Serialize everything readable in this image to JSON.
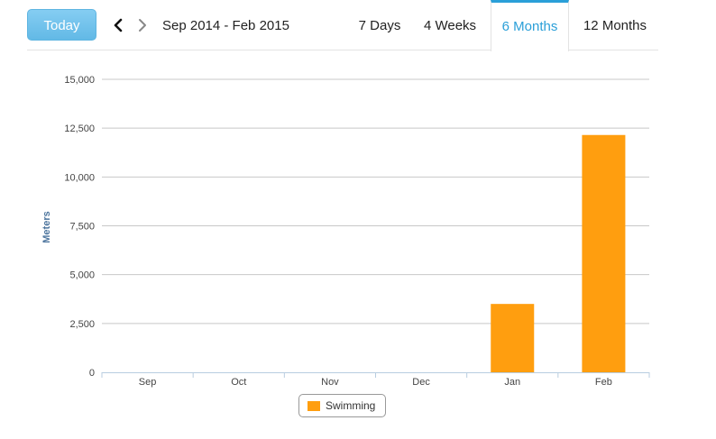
{
  "toolbar": {
    "today_label": "Today",
    "prev_icon": "chevron-left-icon",
    "next_icon": "chevron-right-icon",
    "range_label": "Sep 2014 - Feb 2015",
    "tabs": [
      {
        "label": "7 Days",
        "active": false
      },
      {
        "label": "4 Weeks",
        "active": false
      },
      {
        "label": "6 Months",
        "active": true
      },
      {
        "label": "12 Months",
        "active": false
      }
    ],
    "accent_color": "#2a9fd8"
  },
  "chart_data": {
    "type": "bar",
    "categories": [
      "Sep",
      "Oct",
      "Nov",
      "Dec",
      "Jan",
      "Feb"
    ],
    "series": [
      {
        "name": "Swimming",
        "color": "#ff9e0f",
        "values": [
          0,
          0,
          0,
          0,
          3500,
          12150
        ]
      }
    ],
    "title": "",
    "xlabel": "",
    "ylabel": "Meters",
    "ylim": [
      0,
      15000
    ],
    "yticks": [
      0,
      2500,
      5000,
      7500,
      10000,
      12500,
      15000
    ],
    "ytick_labels": [
      "0",
      "2,500",
      "5,000",
      "7,500",
      "10,000",
      "12,500",
      "15,000"
    ],
    "grid": true,
    "legend_position": "bottom-center"
  }
}
